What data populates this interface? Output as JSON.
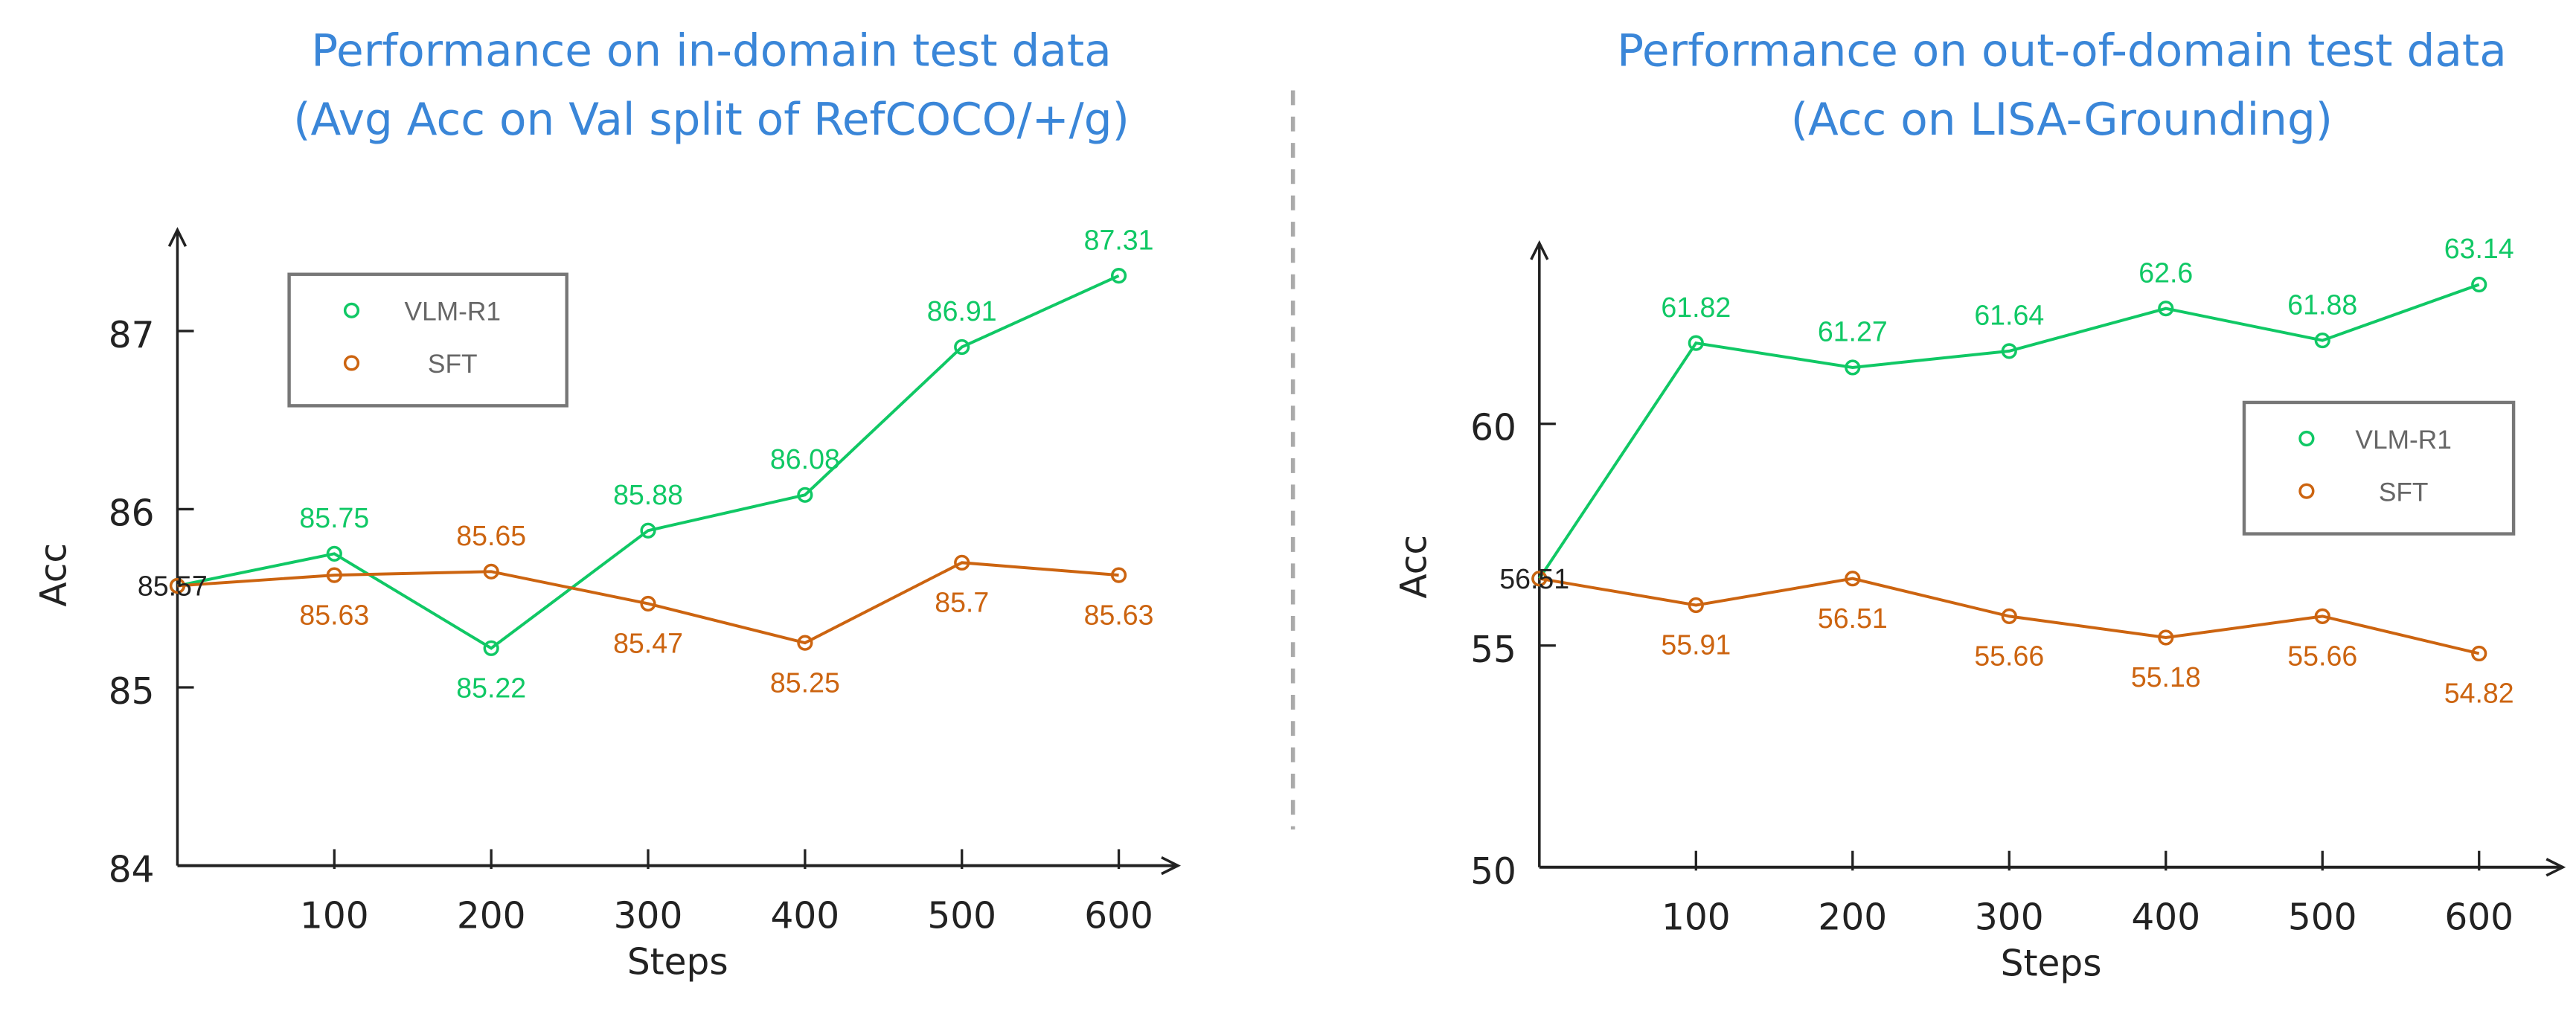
{
  "colors": {
    "VLM-R1": "#10c865",
    "SFT": "#cc6410",
    "title": "#3a86d8",
    "axis": "#222222",
    "start_label": "#222222"
  },
  "chart_data": [
    {
      "type": "line",
      "title": [
        "Performance on in-domain test data",
        "(Avg Acc on Val split of RefCOCO/+/g)"
      ],
      "xlabel": "Steps",
      "ylabel": "Acc",
      "x": [
        0,
        100,
        200,
        300,
        400,
        500,
        600
      ],
      "xticks": [
        "100",
        "200",
        "300",
        "400",
        "500",
        "600"
      ],
      "yticks": [
        "84",
        "85",
        "86",
        "87"
      ],
      "ylim": [
        84,
        87.5
      ],
      "start_label": "85.57",
      "legend": "top-left",
      "series": [
        {
          "name": "VLM-R1",
          "values": [
            85.57,
            85.75,
            85.22,
            85.88,
            86.08,
            86.91,
            87.31
          ],
          "labels": [
            "",
            "85.75",
            "85.22",
            "85.88",
            "86.08",
            "86.91",
            "87.31"
          ],
          "label_pos": [
            "",
            "above",
            "below",
            "above",
            "above",
            "above",
            "above"
          ]
        },
        {
          "name": "SFT",
          "values": [
            85.57,
            85.63,
            85.65,
            85.47,
            85.25,
            85.7,
            85.63
          ],
          "labels": [
            "",
            "85.63",
            "85.65",
            "85.47",
            "85.25",
            "85.7",
            "85.63"
          ],
          "label_pos": [
            "",
            "below",
            "above",
            "below",
            "below",
            "below",
            "below"
          ]
        }
      ]
    },
    {
      "type": "line",
      "title": [
        "Performance on out-of-domain test data",
        "(Acc on LISA-Grounding)"
      ],
      "xlabel": "Steps",
      "ylabel": "Acc",
      "x": [
        0,
        100,
        200,
        300,
        400,
        500,
        600
      ],
      "xticks": [
        "100",
        "200",
        "300",
        "400",
        "500",
        "600"
      ],
      "yticks": [
        "50",
        "55",
        "60"
      ],
      "ylim": [
        50,
        64.5
      ],
      "start_label": "56.51",
      "legend": "right",
      "series": [
        {
          "name": "VLM-R1",
          "values": [
            56.51,
            61.82,
            61.27,
            61.64,
            62.6,
            61.88,
            63.14
          ],
          "labels": [
            "",
            "61.82",
            "61.27",
            "61.64",
            "62.6",
            "61.88",
            "63.14"
          ],
          "label_pos": [
            "",
            "above",
            "above",
            "above",
            "above",
            "above",
            "above"
          ]
        },
        {
          "name": "SFT",
          "values": [
            56.51,
            55.91,
            56.51,
            55.66,
            55.18,
            55.66,
            54.82
          ],
          "labels": [
            "",
            "55.91",
            "56.51",
            "55.66",
            "55.18",
            "55.66",
            "54.82"
          ],
          "label_pos": [
            "",
            "below",
            "below",
            "below",
            "below",
            "below",
            "below"
          ]
        }
      ]
    }
  ]
}
